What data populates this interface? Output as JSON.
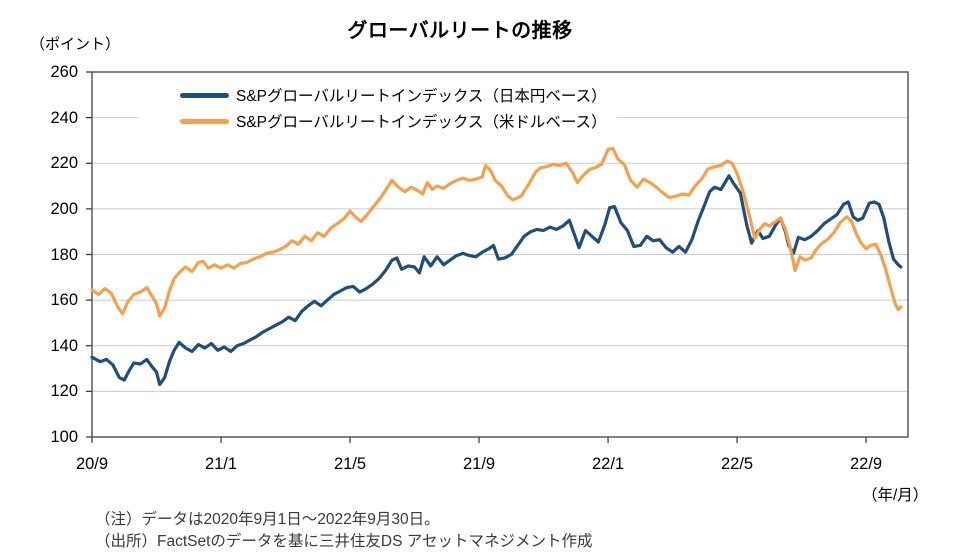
{
  "header": {
    "y_axis_unit": "（ポイント）",
    "x_axis_unit": "（年/月）"
  },
  "notes": {
    "line1": "（注）データは2020年9月1日～2022年9月30日。",
    "line2": "（出所）FactSetのデータを基に三井住友DS アセットマネジメント作成"
  },
  "chart_data": {
    "type": "line",
    "title": "グローバルリートの推移",
    "xlabel": "（年/月）",
    "ylabel": "（ポイント）",
    "ylim": [
      100,
      260
    ],
    "yticks": [
      100,
      120,
      140,
      160,
      180,
      200,
      220,
      240,
      260
    ],
    "x_range_months": [
      0,
      25.3
    ],
    "xticks": [
      {
        "month": 0,
        "label": "20/9"
      },
      {
        "month": 4,
        "label": "21/1"
      },
      {
        "month": 8,
        "label": "21/5"
      },
      {
        "month": 12,
        "label": "21/9"
      },
      {
        "month": 16,
        "label": "22/1"
      },
      {
        "month": 20,
        "label": "22/5"
      },
      {
        "month": 24,
        "label": "22/9"
      }
    ],
    "grid": "horizontal",
    "legend_position": "top-inside",
    "colors": {
      "grid": "#cbcbcb",
      "frame": "#404040"
    },
    "series": [
      {
        "name": "S&Pグローバルリートインデックス（日本円ベース）",
        "color": "#1f4e79",
        "points": [
          [
            0,
            135
          ],
          [
            0.25,
            133
          ],
          [
            0.45,
            134
          ],
          [
            0.65,
            131.5
          ],
          [
            0.85,
            126
          ],
          [
            1.0,
            125
          ],
          [
            1.15,
            129
          ],
          [
            1.3,
            132.5
          ],
          [
            1.5,
            132
          ],
          [
            1.7,
            134
          ],
          [
            1.85,
            131
          ],
          [
            2.0,
            128.5
          ],
          [
            2.1,
            123
          ],
          [
            2.25,
            126
          ],
          [
            2.4,
            133
          ],
          [
            2.55,
            138
          ],
          [
            2.7,
            141.5
          ],
          [
            2.9,
            139
          ],
          [
            3.1,
            137.5
          ],
          [
            3.3,
            140.5
          ],
          [
            3.5,
            139
          ],
          [
            3.7,
            141
          ],
          [
            3.9,
            138
          ],
          [
            4.1,
            139.5
          ],
          [
            4.3,
            137.5
          ],
          [
            4.5,
            140
          ],
          [
            4.7,
            141
          ],
          [
            4.9,
            142.5
          ],
          [
            5.1,
            144
          ],
          [
            5.3,
            146
          ],
          [
            5.5,
            147.5
          ],
          [
            5.7,
            149
          ],
          [
            5.9,
            150.5
          ],
          [
            6.1,
            152.5
          ],
          [
            6.3,
            151
          ],
          [
            6.5,
            155
          ],
          [
            6.7,
            157.5
          ],
          [
            6.9,
            159.5
          ],
          [
            7.1,
            157.5
          ],
          [
            7.3,
            160
          ],
          [
            7.5,
            162.5
          ],
          [
            7.7,
            164
          ],
          [
            7.9,
            165.5
          ],
          [
            8.1,
            166
          ],
          [
            8.3,
            163.5
          ],
          [
            8.5,
            165
          ],
          [
            8.7,
            167
          ],
          [
            8.9,
            169.5
          ],
          [
            9.1,
            173
          ],
          [
            9.3,
            177.5
          ],
          [
            9.45,
            178.5
          ],
          [
            9.6,
            173.5
          ],
          [
            9.8,
            175
          ],
          [
            10.0,
            174.5
          ],
          [
            10.15,
            172
          ],
          [
            10.3,
            179
          ],
          [
            10.5,
            175
          ],
          [
            10.7,
            179
          ],
          [
            10.9,
            175.5
          ],
          [
            11.1,
            177.5
          ],
          [
            11.3,
            179.5
          ],
          [
            11.5,
            180.5
          ],
          [
            11.7,
            179.5
          ],
          [
            11.9,
            179
          ],
          [
            12.1,
            181
          ],
          [
            12.3,
            182.5
          ],
          [
            12.45,
            184
          ],
          [
            12.6,
            178
          ],
          [
            12.8,
            178.5
          ],
          [
            13.0,
            180
          ],
          [
            13.2,
            184
          ],
          [
            13.4,
            188
          ],
          [
            13.6,
            190
          ],
          [
            13.8,
            191
          ],
          [
            14.0,
            190.5
          ],
          [
            14.2,
            192
          ],
          [
            14.4,
            191
          ],
          [
            14.6,
            192.5
          ],
          [
            14.8,
            195
          ],
          [
            15.0,
            187
          ],
          [
            15.1,
            183
          ],
          [
            15.3,
            190.5
          ],
          [
            15.5,
            188
          ],
          [
            15.7,
            185.5
          ],
          [
            15.9,
            193
          ],
          [
            16.05,
            200.5
          ],
          [
            16.2,
            201
          ],
          [
            16.4,
            194
          ],
          [
            16.6,
            190.5
          ],
          [
            16.8,
            183.5
          ],
          [
            17.0,
            184
          ],
          [
            17.2,
            188
          ],
          [
            17.4,
            186
          ],
          [
            17.6,
            186.5
          ],
          [
            17.8,
            183
          ],
          [
            18.0,
            181
          ],
          [
            18.2,
            183.5
          ],
          [
            18.4,
            181
          ],
          [
            18.6,
            186.5
          ],
          [
            18.8,
            195
          ],
          [
            19.0,
            202
          ],
          [
            19.15,
            207.5
          ],
          [
            19.3,
            209.5
          ],
          [
            19.5,
            208.5
          ],
          [
            19.75,
            214.5
          ],
          [
            19.9,
            211
          ],
          [
            20.1,
            207
          ],
          [
            20.3,
            193
          ],
          [
            20.45,
            185
          ],
          [
            20.65,
            190.5
          ],
          [
            20.8,
            187
          ],
          [
            21.0,
            188
          ],
          [
            21.2,
            193
          ],
          [
            21.35,
            196
          ],
          [
            21.5,
            190
          ],
          [
            21.6,
            184
          ],
          [
            21.75,
            180.5
          ],
          [
            21.9,
            187.5
          ],
          [
            22.1,
            186.5
          ],
          [
            22.3,
            188
          ],
          [
            22.5,
            190.5
          ],
          [
            22.7,
            193.5
          ],
          [
            22.9,
            195.5
          ],
          [
            23.1,
            197.5
          ],
          [
            23.3,
            202
          ],
          [
            23.45,
            203
          ],
          [
            23.6,
            196.5
          ],
          [
            23.75,
            195
          ],
          [
            23.9,
            196
          ],
          [
            24.1,
            202.5
          ],
          [
            24.25,
            203
          ],
          [
            24.4,
            202
          ],
          [
            24.55,
            196
          ],
          [
            24.7,
            186
          ],
          [
            24.85,
            178
          ],
          [
            25.0,
            175.5
          ],
          [
            25.08,
            174.5
          ]
        ]
      },
      {
        "name": "S&Pグローバルリートインデックス（米ドルベース）",
        "color": "#f5a04c",
        "points": [
          [
            0,
            164.5
          ],
          [
            0.2,
            162.5
          ],
          [
            0.4,
            165
          ],
          [
            0.6,
            163
          ],
          [
            0.8,
            157
          ],
          [
            0.95,
            154
          ],
          [
            1.1,
            159
          ],
          [
            1.3,
            162.5
          ],
          [
            1.5,
            163.5
          ],
          [
            1.7,
            165.5
          ],
          [
            1.85,
            162
          ],
          [
            2.0,
            158.5
          ],
          [
            2.1,
            153
          ],
          [
            2.25,
            156.5
          ],
          [
            2.4,
            164
          ],
          [
            2.55,
            169.5
          ],
          [
            2.7,
            172
          ],
          [
            2.9,
            174.5
          ],
          [
            3.1,
            172.5
          ],
          [
            3.3,
            176.5
          ],
          [
            3.45,
            177
          ],
          [
            3.6,
            174
          ],
          [
            3.8,
            175.5
          ],
          [
            4.0,
            174
          ],
          [
            4.2,
            175.5
          ],
          [
            4.4,
            174
          ],
          [
            4.6,
            176
          ],
          [
            4.8,
            176.5
          ],
          [
            5.0,
            178
          ],
          [
            5.2,
            179
          ],
          [
            5.4,
            180.5
          ],
          [
            5.6,
            181
          ],
          [
            5.8,
            182
          ],
          [
            6.0,
            183.5
          ],
          [
            6.2,
            186
          ],
          [
            6.4,
            184.5
          ],
          [
            6.6,
            188
          ],
          [
            6.8,
            186
          ],
          [
            7.0,
            189.5
          ],
          [
            7.2,
            188
          ],
          [
            7.4,
            191.5
          ],
          [
            7.6,
            193.5
          ],
          [
            7.8,
            195.5
          ],
          [
            8.0,
            199
          ],
          [
            8.2,
            196
          ],
          [
            8.35,
            194.5
          ],
          [
            8.5,
            197
          ],
          [
            8.7,
            200.5
          ],
          [
            8.9,
            204
          ],
          [
            9.1,
            208
          ],
          [
            9.3,
            212.5
          ],
          [
            9.5,
            209.5
          ],
          [
            9.7,
            207.5
          ],
          [
            9.9,
            209.5
          ],
          [
            10.1,
            208
          ],
          [
            10.25,
            206.5
          ],
          [
            10.4,
            211.5
          ],
          [
            10.55,
            208.5
          ],
          [
            10.7,
            210
          ],
          [
            10.9,
            209
          ],
          [
            11.1,
            211
          ],
          [
            11.3,
            212.5
          ],
          [
            11.5,
            213.5
          ],
          [
            11.7,
            212.5
          ],
          [
            11.9,
            213
          ],
          [
            12.1,
            214
          ],
          [
            12.2,
            219
          ],
          [
            12.35,
            217
          ],
          [
            12.5,
            212.5
          ],
          [
            12.7,
            210
          ],
          [
            12.9,
            205.5
          ],
          [
            13.05,
            204
          ],
          [
            13.3,
            205.5
          ],
          [
            13.55,
            211
          ],
          [
            13.75,
            216
          ],
          [
            13.9,
            218
          ],
          [
            14.1,
            218.5
          ],
          [
            14.3,
            219.5
          ],
          [
            14.5,
            219
          ],
          [
            14.7,
            220
          ],
          [
            14.9,
            216
          ],
          [
            15.05,
            211.5
          ],
          [
            15.25,
            215
          ],
          [
            15.45,
            217.5
          ],
          [
            15.6,
            218
          ],
          [
            15.8,
            219.5
          ],
          [
            16.0,
            226
          ],
          [
            16.15,
            226.5
          ],
          [
            16.3,
            222
          ],
          [
            16.5,
            219.5
          ],
          [
            16.7,
            212.5
          ],
          [
            16.9,
            209.5
          ],
          [
            17.1,
            213
          ],
          [
            17.3,
            211.5
          ],
          [
            17.5,
            209.5
          ],
          [
            17.7,
            207
          ],
          [
            17.9,
            205
          ],
          [
            18.1,
            205.5
          ],
          [
            18.3,
            206.5
          ],
          [
            18.5,
            206
          ],
          [
            18.7,
            210
          ],
          [
            18.9,
            213
          ],
          [
            19.1,
            217.5
          ],
          [
            19.3,
            218.5
          ],
          [
            19.5,
            219
          ],
          [
            19.7,
            221
          ],
          [
            19.85,
            220
          ],
          [
            20.0,
            215.5
          ],
          [
            20.2,
            207
          ],
          [
            20.4,
            196
          ],
          [
            20.55,
            187
          ],
          [
            20.7,
            191
          ],
          [
            20.85,
            193.5
          ],
          [
            21.0,
            192.5
          ],
          [
            21.2,
            194.5
          ],
          [
            21.35,
            196
          ],
          [
            21.5,
            191
          ],
          [
            21.65,
            183
          ],
          [
            21.8,
            173
          ],
          [
            21.95,
            179
          ],
          [
            22.1,
            177.5
          ],
          [
            22.3,
            178.5
          ],
          [
            22.45,
            182
          ],
          [
            22.6,
            184.5
          ],
          [
            22.8,
            186.5
          ],
          [
            23.0,
            189.5
          ],
          [
            23.2,
            194
          ],
          [
            23.4,
            196.5
          ],
          [
            23.55,
            194.5
          ],
          [
            23.7,
            189
          ],
          [
            23.85,
            185
          ],
          [
            24.0,
            182.5
          ],
          [
            24.15,
            184
          ],
          [
            24.3,
            184.5
          ],
          [
            24.45,
            180
          ],
          [
            24.6,
            174
          ],
          [
            24.75,
            166
          ],
          [
            24.9,
            158.5
          ],
          [
            25.0,
            155.8
          ],
          [
            25.08,
            157
          ]
        ]
      }
    ]
  }
}
